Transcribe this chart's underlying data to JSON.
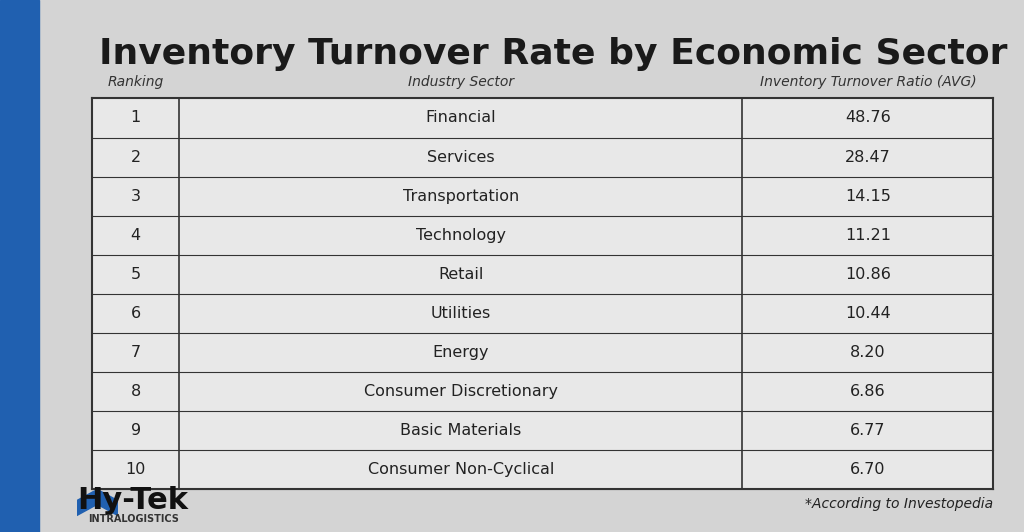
{
  "title": "Inventory Turnover Rate by Economic Sector",
  "col_headers": [
    "Ranking",
    "Industry Sector",
    "Inventory Turnover Ratio (AVG)"
  ],
  "rows": [
    [
      1,
      "Financial",
      "48.76"
    ],
    [
      2,
      "Services",
      "28.47"
    ],
    [
      3,
      "Transportation",
      "14.15"
    ],
    [
      4,
      "Technology",
      "11.21"
    ],
    [
      5,
      "Retail",
      "10.86"
    ],
    [
      6,
      "Utilities",
      "10.44"
    ],
    [
      7,
      "Energy",
      "8.20"
    ],
    [
      8,
      "Consumer Discretionary",
      "6.86"
    ],
    [
      9,
      "Basic Materials",
      "6.77"
    ],
    [
      10,
      "Consumer Non-Cyclical",
      "6.70"
    ]
  ],
  "footer_note": "*According to Investopedia",
  "bg_color": "#d4d4d4",
  "blue_stripe_color": "#2060b0",
  "table_bg": "#e8e8e8",
  "border_color": "#333333",
  "title_color": "#1a1a1a",
  "text_color": "#222222",
  "header_text_color": "#333333",
  "logo_text_hy": "Hy",
  "logo_text_tek": "Tek",
  "logo_subtext": "INTRALOGISTICS"
}
